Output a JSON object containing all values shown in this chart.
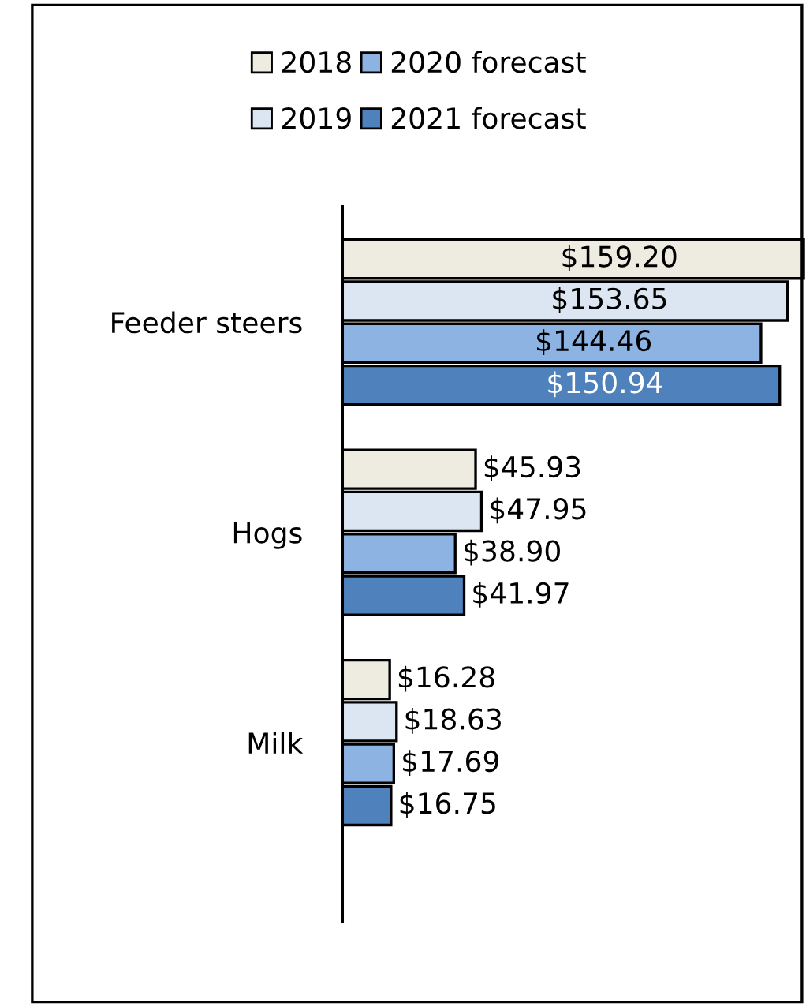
{
  "chart_data": {
    "type": "bar",
    "orientation": "horizontal",
    "categories": [
      "Feeder steers",
      "Hogs",
      "Milk"
    ],
    "series": [
      {
        "name": "2018",
        "color": "#eeece1",
        "values": [
          159.2,
          45.93,
          16.28
        ],
        "value_labels": [
          "$159.20",
          "$45.93",
          "$16.28"
        ]
      },
      {
        "name": "2019",
        "color": "#dce6f2",
        "values": [
          153.65,
          47.95,
          18.63
        ],
        "value_labels": [
          "$153.65",
          "$47.95",
          "$18.63"
        ]
      },
      {
        "name": "2020 forecast",
        "color": "#8db3e2",
        "values": [
          144.46,
          38.9,
          17.69
        ],
        "value_labels": [
          "$144.46",
          "$38.90",
          "$17.69"
        ]
      },
      {
        "name": "2021 forecast",
        "color": "#4f81bd",
        "values": [
          150.94,
          41.97,
          16.75
        ],
        "value_labels": [
          "$150.94",
          "$41.97",
          "$16.75"
        ]
      }
    ],
    "legend": "top",
    "grid": false
  }
}
